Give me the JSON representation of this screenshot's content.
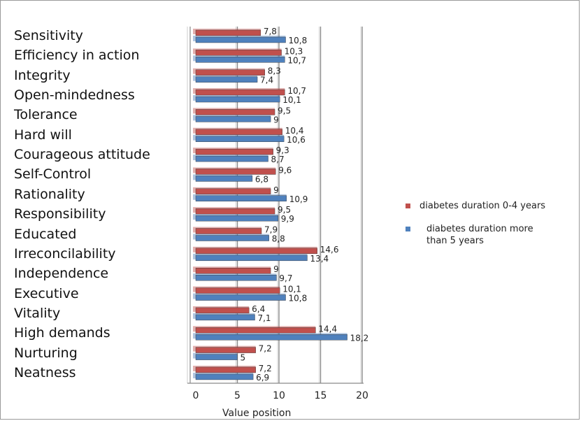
{
  "chart_data": {
    "type": "bar",
    "orientation": "horizontal",
    "categories": [
      "Sensitivity",
      "Efficiency in action",
      "Integrity",
      "Open-mindedness",
      "Tolerance",
      "Hard will",
      "Courageous attitude",
      "Self-Control",
      "Rationality",
      "Responsibility",
      "Educated",
      "Irreconcilability",
      "Independence",
      "Executive",
      "Vitality",
      "High demands",
      "Nurturing",
      "Neatness"
    ],
    "series": [
      {
        "name": "diabetes duration 0-4 years",
        "color": "#c0504d",
        "values": [
          7.8,
          10.3,
          8.3,
          10.7,
          9.5,
          10.4,
          9.3,
          9.6,
          9,
          9.5,
          7.9,
          14.6,
          9,
          10.1,
          6.4,
          14.4,
          7.2,
          7.2
        ],
        "labels": [
          "7,8",
          "10,3",
          "8,3",
          "10,7",
          "9,5",
          "10,4",
          "9,3",
          "9,6",
          "9",
          "9,5",
          "7,9",
          "14,6",
          "9",
          "10,1",
          "6,4",
          "14,4",
          "7,2",
          "7,2"
        ]
      },
      {
        "name": "diabetes duration more than 5 years",
        "color": "#4f81bd",
        "values": [
          10.8,
          10.7,
          7.4,
          10.1,
          9,
          10.6,
          8.7,
          6.8,
          10.9,
          9.9,
          8.8,
          13.4,
          9.7,
          10.8,
          7.1,
          18.2,
          5,
          6.9
        ],
        "labels": [
          "10,8",
          "10,7",
          "7,4",
          "10,1",
          "9",
          "10,6",
          "8,7",
          "6,8",
          "10,9",
          "9,9",
          "8,8",
          "13,4",
          "9,7",
          "10,8",
          "7,1",
          "18,2",
          "5",
          "6,9"
        ]
      }
    ],
    "xlim": [
      0,
      20
    ],
    "xticks": [
      "0",
      "5",
      "10",
      "15",
      "20"
    ],
    "xlabel": "Value position",
    "grid": true,
    "legend_position": "right"
  },
  "legend": {
    "item1": "diabetes duration 0-4 years",
    "item2_line1": "diabetes duration more",
    "item2_line2": "than 5 years"
  }
}
